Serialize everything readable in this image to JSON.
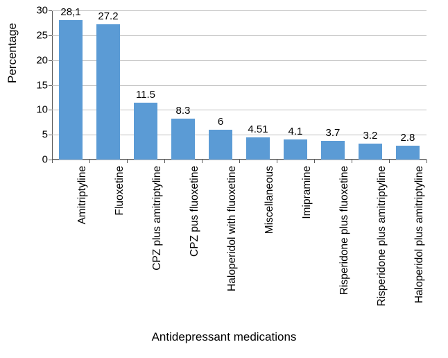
{
  "chart": {
    "type": "bar",
    "y_axis_label": "Percentage",
    "x_axis_label": "Antidepressant medications",
    "ylim": [
      0,
      30
    ],
    "ytick_step": 5,
    "yticks": [
      0,
      5,
      10,
      15,
      20,
      25,
      30
    ],
    "background_color": "#ffffff",
    "grid_color": "#bfbfbf",
    "axis_color": "#595959",
    "bar_color": "#5b9bd5",
    "text_color": "#000000",
    "label_fontsize": 17,
    "tick_fontsize": 15,
    "value_fontsize": 15,
    "category_fontsize": 15.5,
    "bar_width_ratio": 0.62,
    "categories": [
      "Amitriptyline",
      "Fluoxetine",
      "CPZ plus amitriptyline",
      "CPZ pus fluoxetine",
      "Haloperidol with fluoxetine",
      "Miscellaneous",
      "Imipramine",
      "Risperidone plus fluoxetine",
      "Risperidone plus amitriptyline",
      "Haloperidol plus amitriptyline"
    ],
    "values": [
      28.1,
      27.2,
      11.5,
      8.3,
      6,
      4.51,
      4.1,
      3.7,
      3.2,
      2.8
    ],
    "value_labels": [
      "28,1",
      "27.2",
      "11.5",
      "8.3",
      "6",
      "4.51",
      "4.1",
      "3.7",
      "3.2",
      "2.8"
    ]
  }
}
